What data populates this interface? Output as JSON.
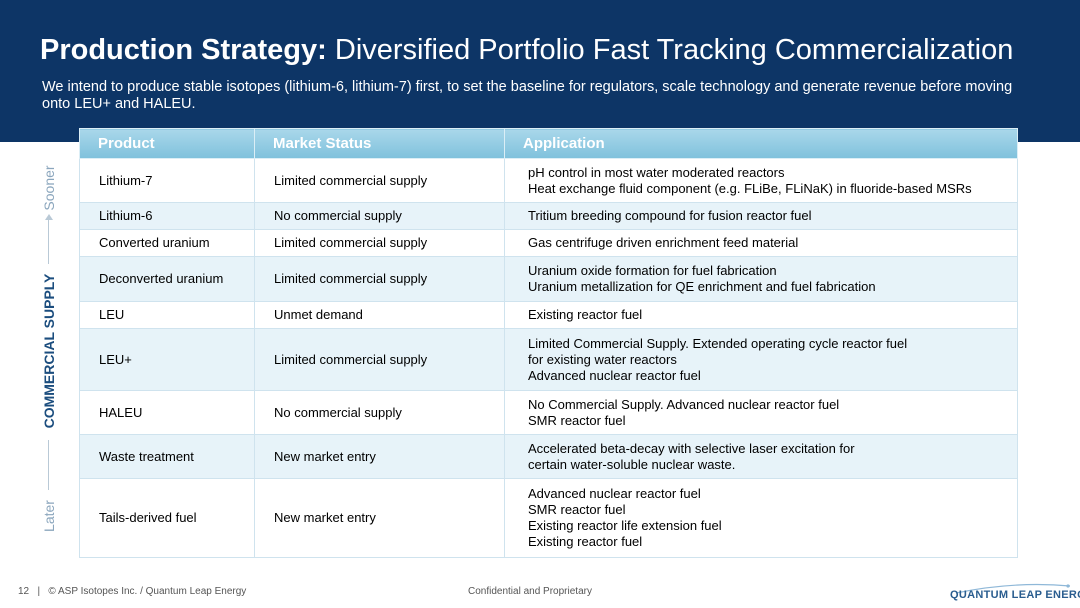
{
  "header": {
    "title_bold": "Production Strategy:",
    "title_rest": " Diversified Portfolio Fast Tracking Commercialization",
    "subtitle": "We intend to produce stable isotopes (lithium-6, lithium-7) first, to set the baseline for regulators, scale technology and generate revenue before moving onto LEU+ and HALEU."
  },
  "side": {
    "sooner": "Sooner",
    "label": "COMMERCIAL SUPPLY",
    "later": "Later"
  },
  "table": {
    "columns": [
      "Product",
      "Market Status",
      "Application"
    ],
    "rows": [
      {
        "product": "Lithium-7",
        "status": "Limited commercial supply",
        "application": [
          "pH control in most water moderated reactors",
          "Heat exchange fluid component (e.g. FLiBe, FLiNaK) in fluoride-based MSRs"
        ]
      },
      {
        "product": "Lithium-6",
        "status": "No commercial supply",
        "application": [
          "Tritium breeding compound for fusion reactor fuel"
        ]
      },
      {
        "product": "Converted uranium",
        "status": "Limited commercial supply",
        "application": [
          "Gas centrifuge driven enrichment feed material"
        ]
      },
      {
        "product": "Deconverted uranium",
        "status": "Limited commercial supply",
        "application": [
          "Uranium oxide formation for fuel fabrication",
          "Uranium metallization for QE enrichment and fuel fabrication"
        ]
      },
      {
        "product": "LEU",
        "status": "Unmet demand",
        "application": [
          "Existing reactor fuel"
        ]
      },
      {
        "product": "LEU+",
        "status": "Limited commercial supply",
        "application": [
          "Limited Commercial Supply. Extended operating cycle reactor fuel",
          "for existing water reactors",
          "Advanced nuclear reactor fuel"
        ]
      },
      {
        "product": "HALEU",
        "status": "No commercial supply",
        "application": [
          "No Commercial Supply. Advanced nuclear reactor fuel",
          "SMR reactor fuel"
        ]
      },
      {
        "product": "Waste treatment",
        "status": "New market entry",
        "application": [
          "Accelerated beta-decay with selective laser excitation for",
          "certain water-soluble nuclear waste."
        ]
      },
      {
        "product": "Tails-derived fuel",
        "status": "New market entry",
        "application": [
          "Advanced nuclear reactor fuel",
          "SMR reactor fuel",
          "Existing reactor life extension fuel",
          "Existing reactor fuel"
        ]
      }
    ]
  },
  "footer": {
    "page_number": "12",
    "separator": "|",
    "copyright": "© ASP Isotopes Inc. / Quantum Leap Energy",
    "confidential": "Confidential and Proprietary",
    "logo_text": "QUANTUM LEAP ENERGY"
  },
  "colors": {
    "header_bg": "#0d3566",
    "table_header": "#7fc1dc",
    "row_shade": "#e7f3f9",
    "side_label": "#1b4d7e"
  }
}
